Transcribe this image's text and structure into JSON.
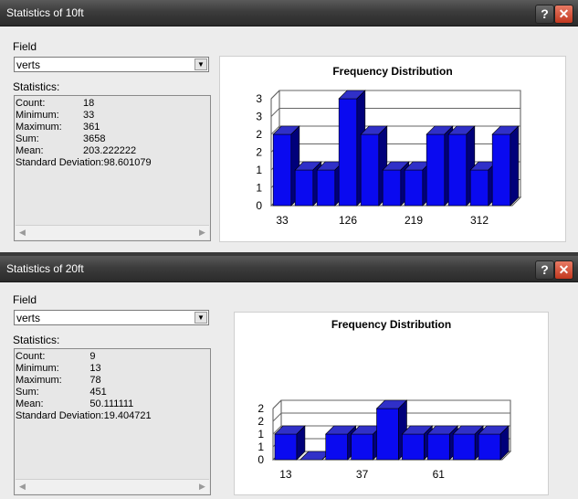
{
  "windows": [
    {
      "title": "Statistics of 10ft",
      "field_label": "Field",
      "field_value": "verts",
      "stats_label": "Statistics:",
      "stats": [
        {
          "k": "Count:",
          "v": "18"
        },
        {
          "k": "Minimum:",
          "v": "33"
        },
        {
          "k": "Maximum:",
          "v": "361"
        },
        {
          "k": "Sum:",
          "v": "3658"
        },
        {
          "k": "Mean:",
          "v": "203.222222"
        },
        {
          "k": "Standard Deviation:",
          "v": "98.601079"
        }
      ]
    },
    {
      "title": "Statistics of 20ft",
      "field_label": "Field",
      "field_value": "verts",
      "stats_label": "Statistics:",
      "stats": [
        {
          "k": "Count:",
          "v": "9"
        },
        {
          "k": "Minimum:",
          "v": "13"
        },
        {
          "k": "Maximum:",
          "v": "78"
        },
        {
          "k": "Sum:",
          "v": "451"
        },
        {
          "k": "Mean:",
          "v": "50.111111"
        },
        {
          "k": "Standard Deviation:",
          "v": "19.404721"
        }
      ]
    }
  ],
  "icons": {
    "help": "?",
    "close": "✕",
    "dropdown": "▼",
    "scroll_left": "◀",
    "scroll_right": "▶"
  },
  "colors": {
    "bar_front": "#0a0af0",
    "bar_top": "#3030c8",
    "bar_side": "#00007a",
    "close_button": "#d04a2e"
  },
  "chart_data": [
    {
      "type": "bar",
      "title": "Frequency Distribution",
      "values": [
        2,
        1,
        1,
        3,
        2,
        1,
        1,
        2,
        2,
        1,
        2
      ],
      "x_tick_labels": [
        "33",
        "126",
        "219",
        "312"
      ],
      "y_tick_labels": [
        "0",
        "1",
        "1",
        "2",
        "2",
        "3",
        "3"
      ],
      "ylim": [
        0,
        3
      ],
      "grid": true
    },
    {
      "type": "bar",
      "title": "Frequency Distribution",
      "values": [
        1,
        0,
        1,
        1,
        2,
        1,
        1,
        1,
        1
      ],
      "x_tick_labels": [
        "13",
        "37",
        "61"
      ],
      "y_tick_labels": [
        "0",
        "1",
        "1",
        "2",
        "2"
      ],
      "ylim": [
        0,
        2
      ],
      "grid": true
    }
  ]
}
